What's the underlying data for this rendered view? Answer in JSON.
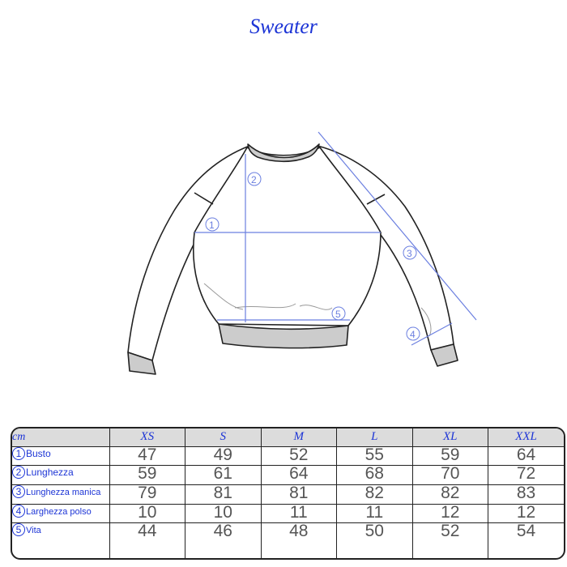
{
  "title": "Sweater",
  "colors": {
    "accent": "#1d35d6",
    "header_bg": "#dcdcdc",
    "values": "#555555"
  },
  "diagram": {
    "markers": [
      "1",
      "2",
      "3",
      "4",
      "5"
    ]
  },
  "table": {
    "unit": "cm",
    "sizes": [
      "XS",
      "S",
      "M",
      "L",
      "XL",
      "XXL"
    ],
    "rows": [
      {
        "num": "1",
        "label": "Busto",
        "values": [
          "47",
          "49",
          "52",
          "55",
          "59",
          "64"
        ]
      },
      {
        "num": "2",
        "label": "Lunghezza",
        "values": [
          "59",
          "61",
          "64",
          "68",
          "70",
          "72"
        ]
      },
      {
        "num": "3",
        "label": "Lunghezza manica",
        "values": [
          "79",
          "81",
          "81",
          "82",
          "82",
          "83"
        ]
      },
      {
        "num": "4",
        "label": "Larghezza polso",
        "values": [
          "10",
          "10",
          "11",
          "11",
          "12",
          "12"
        ]
      },
      {
        "num": "5",
        "label": "Vita",
        "values": [
          "44",
          "46",
          "48",
          "50",
          "52",
          "54"
        ]
      }
    ]
  }
}
